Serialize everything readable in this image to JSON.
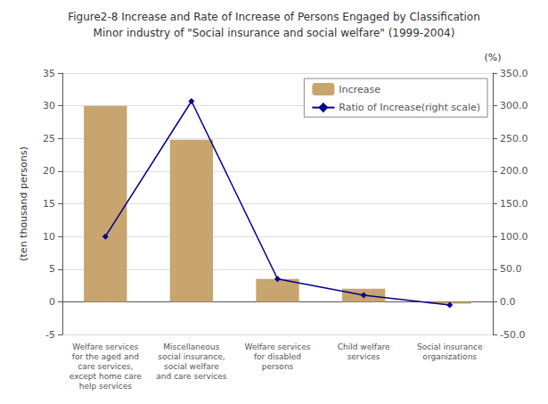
{
  "chart_data": {
    "type": "bar",
    "title": "Figure2-8 Increase and Rate of Increase of Persons Engaged by Classification",
    "subtitle": "Minor industry of \"Social insurance and social welfare\" (1999-2004)",
    "categories": [
      "Welfare services\nfor the aged and\ncare services,\nexcept home care\nhelp services",
      "Miscellaneous\nsocial insurance,\nsocial welfare\nand care services",
      "Welfare services\nfor disabled\npersons",
      "Child welfare\nservices",
      "Social insurance\norganizations"
    ],
    "series": [
      {
        "name": "Increase",
        "type": "bar",
        "color": "#C8A46E",
        "values": [
          30.0,
          24.8,
          3.5,
          2.0,
          -0.3
        ]
      },
      {
        "name": "Ratio of Increase(right scale)",
        "type": "line",
        "axis": "y2",
        "color": "#00008B",
        "marker": "diamond",
        "values": [
          100.0,
          307.0,
          35.0,
          10.0,
          -5.0
        ]
      }
    ],
    "ylabel": "(ten thousand persons)",
    "y2label": "(%)",
    "ylim": [
      -5,
      35
    ],
    "yticks": [
      -5,
      0,
      5,
      10,
      15,
      20,
      25,
      30,
      35
    ],
    "y2lim": [
      -50,
      350
    ],
    "y2ticks": [
      {
        "value": -50,
        "label": "-50.0"
      },
      {
        "value": 0,
        "label": "0.0"
      },
      {
        "value": 50,
        "label": "50.0"
      },
      {
        "value": 100,
        "label": "100.0"
      },
      {
        "value": 150,
        "label": "150.0"
      },
      {
        "value": 200,
        "label": "200.0"
      },
      {
        "value": 250,
        "label": "250.0"
      },
      {
        "value": 300,
        "label": "300.0"
      },
      {
        "value": 350,
        "label": "350.0"
      }
    ],
    "grid": true,
    "legend": "upper right"
  }
}
